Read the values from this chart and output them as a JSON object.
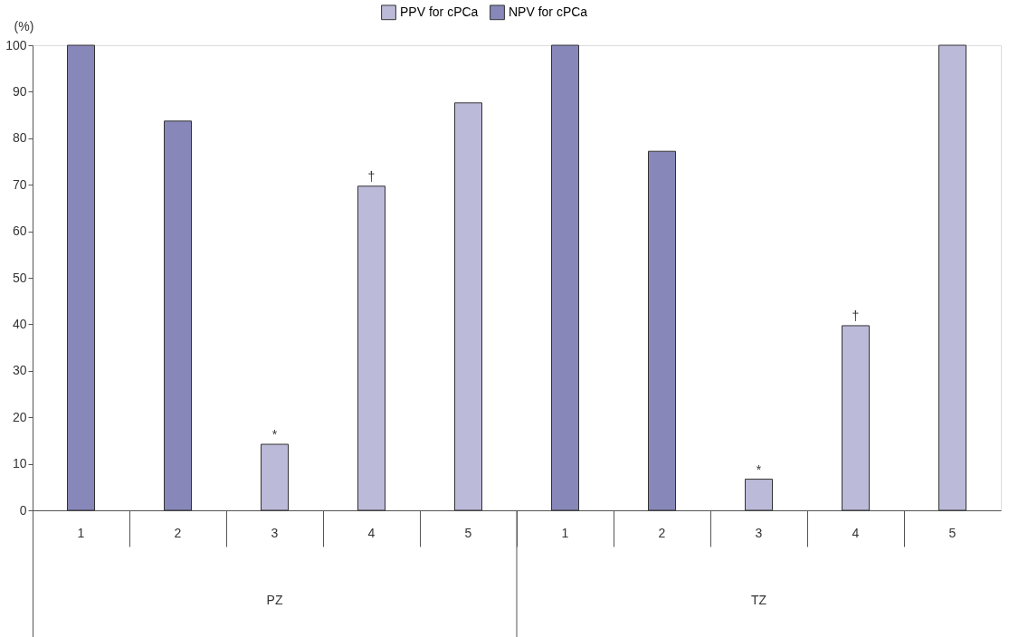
{
  "chart_data": {
    "type": "bar",
    "ylabel": "(%)",
    "categories": [
      "1",
      "2",
      "3",
      "4",
      "5",
      "1",
      "2",
      "3",
      "4",
      "5"
    ],
    "series": [
      {
        "name": "PPV for cPCa",
        "color": "#bbbad9",
        "values": [
          null,
          null,
          14.2,
          69.7,
          87.6,
          null,
          null,
          6.7,
          39.7,
          100
        ]
      },
      {
        "name": "NPV for cPCa",
        "color": "#8887b9",
        "values": [
          100,
          83.7,
          null,
          null,
          null,
          100,
          77.2,
          null,
          null,
          null
        ]
      }
    ],
    "ylim": [
      0,
      100
    ],
    "yticks": [
      0,
      10,
      20,
      30,
      40,
      50,
      60,
      70,
      80,
      90,
      100
    ],
    "grid": false,
    "legend": "top",
    "annotations": [
      {
        "text": "*",
        "y": 14.2
      },
      {
        "text": "†",
        "y": 69.7
      },
      {
        "text": "*",
        "y": 6.7
      },
      {
        "text": "†",
        "y": 39.7
      },
      "PZ",
      "TZ"
    ]
  }
}
